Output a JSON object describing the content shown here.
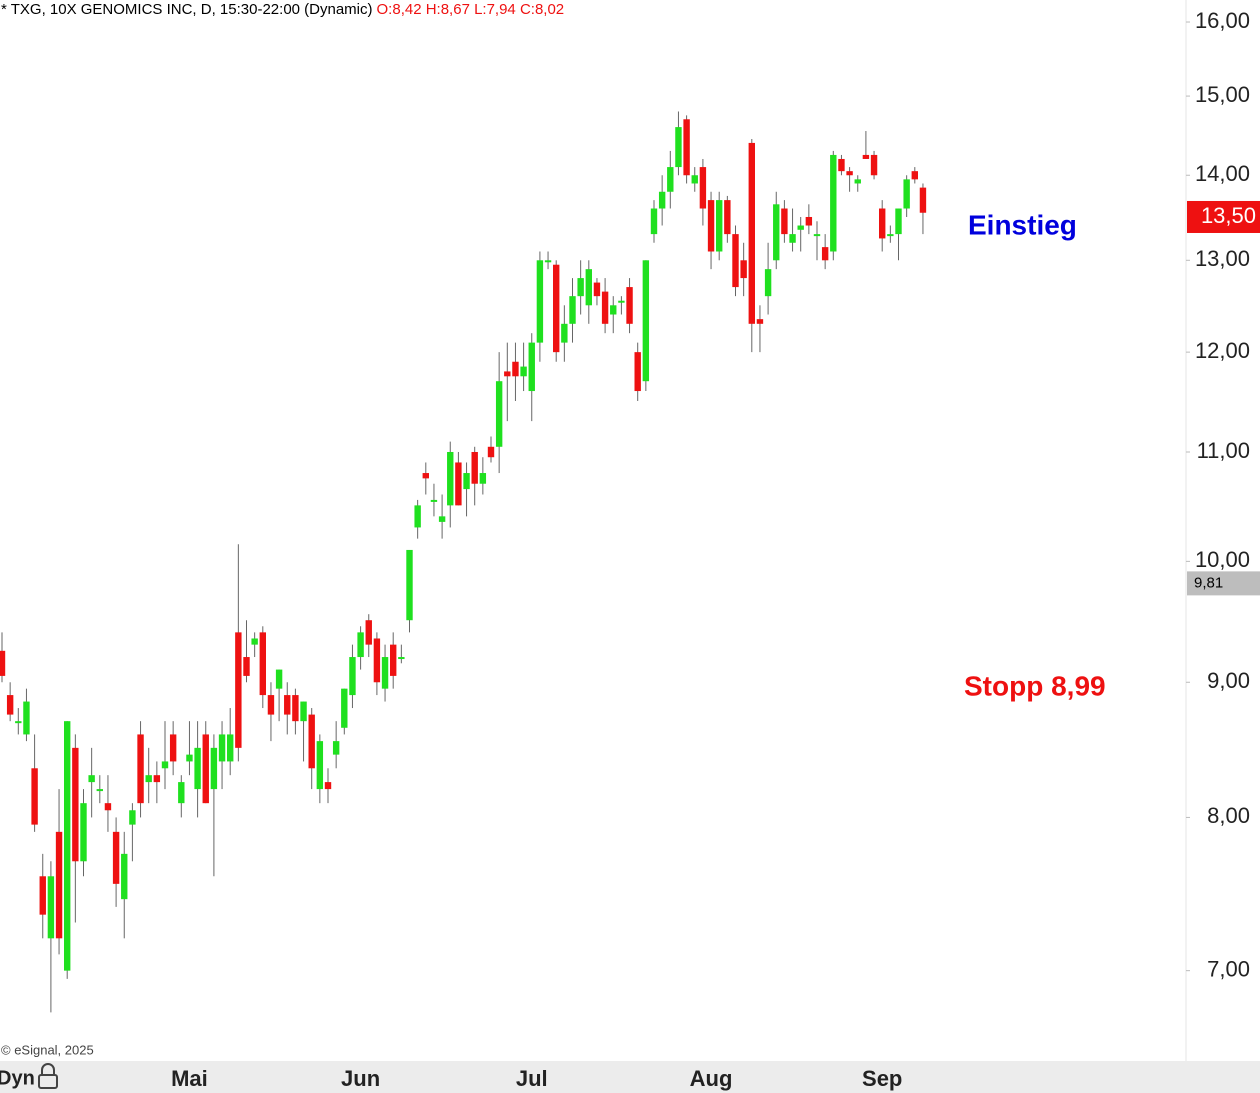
{
  "chart_data": {
    "type": "candlestick",
    "title": "* TXG, 10X GENOMICS INC, D, 15:30-22:00 (Dynamic)",
    "subtitle": "O:8,42 H:8,67 L:7,94 C:8,02",
    "source": "© eSignal, 2025",
    "mode_label": "Dyn",
    "log_scale": true,
    "grid": false,
    "up_color": "#1fe01f",
    "down_color": "#ee1111",
    "ylim": [
      6.47,
      16.31
    ],
    "yticks": [
      {
        "value": 7,
        "label": "7,00"
      },
      {
        "value": 8,
        "label": "8,00"
      },
      {
        "value": 9,
        "label": "9,00"
      },
      {
        "value": 10,
        "label": "10,00"
      },
      {
        "value": 11,
        "label": "11,00"
      },
      {
        "value": 12,
        "label": "12,00"
      },
      {
        "value": 13,
        "label": "13,00"
      },
      {
        "value": 14,
        "label": "14,00"
      },
      {
        "value": 15,
        "label": "15,00"
      },
      {
        "value": 16,
        "label": "16,00"
      }
    ],
    "price_markers": [
      {
        "value": 13.5,
        "label": "13,50",
        "color": "#ee1111",
        "text_color": "#ffffff"
      },
      {
        "value": 9.81,
        "label": "9,81",
        "color": "#bdbdbd",
        "text_color": "#000000"
      }
    ],
    "annotations": [
      {
        "text": "Einstieg",
        "color": "#0000dd"
      },
      {
        "text": "Stopp 8,99",
        "color": "#ee1111"
      }
    ],
    "categories": [
      null,
      null,
      null,
      null,
      null,
      null,
      null,
      null,
      null,
      null,
      null,
      null,
      null,
      null,
      null,
      null,
      null,
      null,
      null,
      null,
      null,
      null,
      null,
      "Mai",
      null,
      null,
      null,
      null,
      null,
      null,
      null,
      null,
      null,
      null,
      null,
      null,
      null,
      null,
      null,
      null,
      null,
      null,
      null,
      null,
      "Jun",
      null,
      null,
      null,
      null,
      null,
      null,
      null,
      null,
      null,
      null,
      null,
      null,
      null,
      null,
      null,
      null,
      null,
      null,
      null,
      null,
      "Jul",
      null,
      null,
      null,
      null,
      null,
      null,
      null,
      null,
      null,
      null,
      null,
      null,
      null,
      null,
      null,
      null,
      null,
      null,
      null,
      null,
      null,
      "Aug",
      null,
      null,
      null,
      null,
      null,
      null,
      null,
      null,
      null,
      null,
      null,
      null,
      null,
      null,
      null,
      null,
      null,
      null,
      null,
      null,
      "Sep",
      null,
      null,
      null,
      null,
      null
    ],
    "open": [
      9.25,
      8.9,
      8.7,
      8.6,
      8.35,
      7.6,
      7.2,
      7.9,
      7.0,
      8.5,
      7.7,
      8.25,
      8.2,
      8.1,
      7.9,
      7.45,
      7.95,
      8.6,
      8.25,
      8.3,
      8.35,
      8.6,
      8.1,
      8.4,
      8.2,
      8.6,
      8.2,
      8.4,
      8.4,
      9.4,
      9.2,
      9.3,
      9.4,
      8.9,
      8.95,
      8.9,
      8.9,
      8.7,
      8.75,
      8.2,
      8.25,
      8.45,
      8.65,
      8.9,
      9.2,
      9.5,
      9.35,
      8.95,
      9.3,
      9.2,
      9.5,
      10.3,
      10.8,
      10.55,
      10.35,
      10.5,
      10.9,
      10.65,
      11.0,
      10.7,
      11.05,
      11.05,
      11.8,
      11.9,
      11.75,
      11.6,
      12.1,
      13.0,
      12.95,
      12.1,
      12.3,
      12.6,
      12.5,
      12.75,
      12.65,
      12.4,
      12.55,
      12.7,
      12.0,
      11.7,
      13.3,
      13.6,
      13.8,
      14.1,
      14.7,
      13.9,
      14.1,
      13.7,
      13.1,
      13.7,
      13.3,
      13.0,
      14.4,
      12.35,
      12.6,
      13.0,
      13.6,
      13.2,
      13.35,
      13.5,
      13.3,
      13.15,
      13.1,
      14.2,
      14.05,
      13.9,
      14.25,
      14.25,
      13.6,
      13.3,
      13.3,
      13.6,
      14.05,
      13.85
    ],
    "high": [
      9.4,
      9.0,
      8.8,
      8.95,
      8.6,
      7.75,
      7.7,
      8.2,
      8.7,
      8.6,
      8.2,
      8.5,
      8.3,
      8.3,
      8.0,
      7.9,
      8.1,
      8.7,
      8.5,
      8.4,
      8.7,
      8.7,
      8.3,
      8.7,
      8.7,
      8.7,
      8.6,
      8.7,
      8.8,
      10.15,
      9.5,
      9.4,
      9.45,
      9.0,
      9.1,
      9.0,
      8.95,
      8.85,
      8.8,
      8.6,
      8.35,
      8.7,
      8.95,
      9.3,
      9.45,
      9.55,
      9.4,
      9.3,
      9.4,
      9.3,
      10.1,
      10.55,
      10.9,
      10.7,
      10.6,
      11.1,
      11.0,
      10.9,
      11.05,
      10.95,
      11.15,
      12.0,
      12.1,
      12.1,
      12.1,
      12.2,
      13.1,
      13.1,
      13.0,
      12.5,
      12.8,
      13.0,
      13.0,
      12.8,
      12.8,
      12.6,
      12.6,
      12.8,
      12.1,
      13.0,
      13.7,
      14.0,
      14.3,
      14.8,
      14.75,
      14.1,
      14.2,
      13.8,
      13.8,
      13.75,
      13.4,
      13.2,
      14.45,
      12.5,
      13.2,
      13.8,
      13.7,
      13.6,
      13.5,
      13.65,
      13.45,
      13.3,
      14.3,
      14.25,
      14.1,
      14.0,
      14.55,
      14.3,
      13.7,
      13.4,
      13.6,
      14.0,
      14.1,
      13.9
    ],
    "low": [
      9.0,
      8.7,
      8.6,
      8.55,
      7.9,
      7.2,
      6.75,
      7.1,
      6.95,
      7.3,
      7.6,
      8.0,
      8.1,
      7.9,
      7.4,
      7.2,
      7.7,
      8.0,
      8.1,
      8.1,
      8.2,
      8.3,
      8.0,
      8.3,
      8.0,
      8.1,
      7.6,
      8.2,
      8.3,
      8.4,
      9.0,
      9.2,
      8.8,
      8.55,
      8.7,
      8.6,
      8.6,
      8.4,
      8.2,
      8.1,
      8.1,
      8.35,
      8.6,
      8.8,
      9.1,
      9.2,
      8.9,
      8.85,
      8.95,
      9.15,
      9.4,
      10.2,
      10.6,
      10.4,
      10.2,
      10.3,
      10.5,
      10.4,
      10.5,
      10.6,
      10.9,
      10.8,
      11.3,
      11.5,
      11.6,
      11.3,
      11.9,
      12.9,
      11.9,
      11.9,
      12.1,
      12.4,
      12.3,
      12.5,
      12.2,
      12.2,
      12.4,
      12.2,
      11.5,
      11.6,
      13.2,
      13.4,
      13.6,
      14.0,
      13.9,
      13.8,
      13.4,
      12.9,
      13.0,
      13.2,
      12.6,
      12.6,
      12.0,
      12.0,
      12.4,
      12.9,
      13.2,
      13.1,
      13.1,
      13.3,
      13.0,
      12.9,
      13.0,
      14.0,
      13.8,
      13.8,
      14.2,
      13.95,
      13.1,
      13.2,
      13.0,
      13.5,
      13.9,
      13.3
    ],
    "close": [
      9.05,
      8.75,
      8.7,
      8.85,
      7.95,
      7.35,
      7.6,
      7.2,
      8.7,
      7.7,
      8.1,
      8.3,
      8.2,
      8.05,
      7.55,
      7.75,
      8.05,
      8.1,
      8.3,
      8.25,
      8.4,
      8.4,
      8.25,
      8.45,
      8.5,
      8.1,
      8.5,
      8.6,
      8.6,
      8.5,
      9.05,
      9.35,
      8.9,
      8.75,
      9.1,
      8.75,
      8.7,
      8.85,
      8.35,
      8.55,
      8.2,
      8.55,
      8.95,
      9.2,
      9.4,
      9.3,
      9.0,
      9.2,
      9.05,
      9.2,
      10.1,
      10.5,
      10.75,
      10.55,
      10.4,
      11.0,
      10.5,
      10.8,
      10.7,
      10.8,
      10.95,
      11.7,
      11.75,
      11.75,
      11.85,
      12.1,
      13.0,
      13.0,
      12.0,
      12.3,
      12.6,
      12.8,
      12.9,
      12.6,
      12.3,
      12.5,
      12.55,
      12.3,
      11.6,
      13.0,
      13.6,
      13.8,
      14.1,
      14.6,
      14.0,
      14.0,
      13.6,
      13.1,
      13.7,
      13.3,
      12.7,
      12.8,
      12.3,
      12.3,
      12.9,
      13.65,
      13.3,
      13.3,
      13.4,
      13.4,
      13.3,
      13.0,
      14.25,
      14.05,
      14.0,
      13.95,
      14.2,
      14.0,
      13.25,
      13.3,
      13.6,
      13.95,
      13.95,
      13.55
    ]
  }
}
